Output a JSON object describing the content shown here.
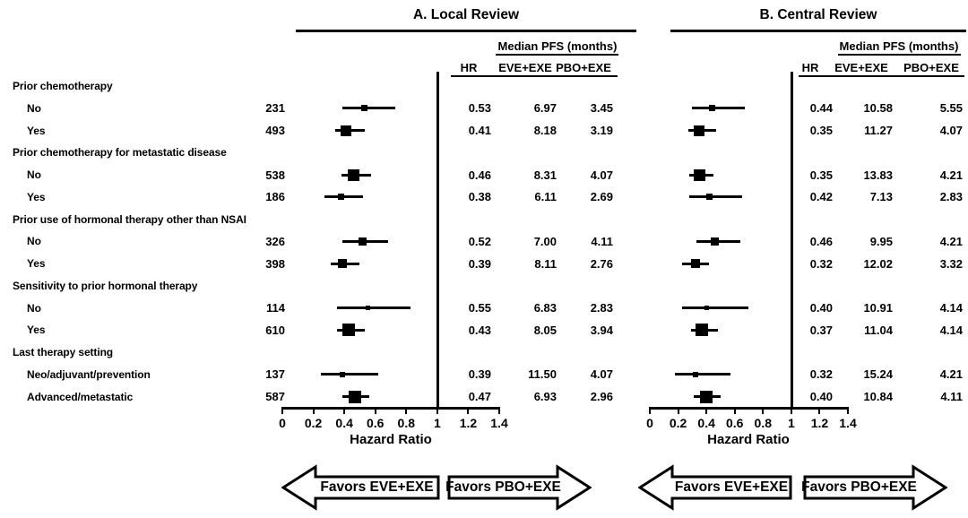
{
  "figure": {
    "background": "#ffffff",
    "ink": "#000000"
  },
  "panels": {
    "a_title": "A. Local Review",
    "b_title": "B. Central Review"
  },
  "table_headers": {
    "median_pfs": "Median PFS (months)",
    "hr": "HR",
    "eve": "EVE+EXE",
    "pbo": "PBO+EXE"
  },
  "axis": {
    "label": "Hazard Ratio"
  },
  "arrows": {
    "left": "Favors EVE+EXE",
    "right": "Favors PBO+EXE"
  },
  "chart_data": {
    "type": "forest",
    "x_axis": {
      "label": "Hazard Ratio",
      "range": [
        0,
        1.4
      ],
      "ticks": [
        0,
        0.2,
        0.4,
        0.6,
        0.8,
        1,
        1.2,
        1.4
      ],
      "reference_line": 1
    },
    "panels": [
      {
        "key": "local",
        "title": "A. Local Review"
      },
      {
        "key": "central",
        "title": "B. Central Review"
      }
    ],
    "value_columns": [
      "HR",
      "EVE+EXE (median PFS, months)",
      "PBO+EXE (median PFS, months)"
    ],
    "layout_hints": {
      "grid": false,
      "marker": "black square sized by n",
      "ci_note": "ci bounds estimated from plotted whiskers",
      "favors_left": "Favors EVE+EXE",
      "favors_right": "Favors PBO+EXE"
    },
    "rows": [
      {
        "type": "group",
        "label": "Prior chemotherapy"
      },
      {
        "type": "item",
        "label": "No",
        "n": 231,
        "local": {
          "hr": 0.53,
          "ci": [
            0.39,
            0.73
          ],
          "eve_pfs": 6.97,
          "pbo_pfs": 3.45
        },
        "central": {
          "hr": 0.44,
          "ci": [
            0.3,
            0.67
          ],
          "eve_pfs": 10.58,
          "pbo_pfs": 5.55
        }
      },
      {
        "type": "item",
        "label": "Yes",
        "n": 493,
        "local": {
          "hr": 0.41,
          "ci": [
            0.34,
            0.53
          ],
          "eve_pfs": 8.18,
          "pbo_pfs": 3.19
        },
        "central": {
          "hr": 0.35,
          "ci": [
            0.27,
            0.47
          ],
          "eve_pfs": 11.27,
          "pbo_pfs": 4.07
        }
      },
      {
        "type": "group",
        "label": "Prior chemotherapy for metastatic disease"
      },
      {
        "type": "item",
        "label": "No",
        "n": 538,
        "local": {
          "hr": 0.46,
          "ci": [
            0.38,
            0.57
          ],
          "eve_pfs": 8.31,
          "pbo_pfs": 4.07
        },
        "central": {
          "hr": 0.35,
          "ci": [
            0.28,
            0.45
          ],
          "eve_pfs": 13.83,
          "pbo_pfs": 4.21
        }
      },
      {
        "type": "item",
        "label": "Yes",
        "n": 186,
        "local": {
          "hr": 0.38,
          "ci": [
            0.27,
            0.52
          ],
          "eve_pfs": 6.11,
          "pbo_pfs": 2.69
        },
        "central": {
          "hr": 0.42,
          "ci": [
            0.28,
            0.65
          ],
          "eve_pfs": 7.13,
          "pbo_pfs": 2.83
        }
      },
      {
        "type": "group",
        "label": "Prior use of hormonal therapy other than NSAI"
      },
      {
        "type": "item",
        "label": "No",
        "n": 326,
        "local": {
          "hr": 0.52,
          "ci": [
            0.39,
            0.68
          ],
          "eve_pfs": 7.0,
          "pbo_pfs": 4.11
        },
        "central": {
          "hr": 0.46,
          "ci": [
            0.33,
            0.64
          ],
          "eve_pfs": 9.95,
          "pbo_pfs": 4.21
        }
      },
      {
        "type": "item",
        "label": "Yes",
        "n": 398,
        "local": {
          "hr": 0.39,
          "ci": [
            0.31,
            0.5
          ],
          "eve_pfs": 8.11,
          "pbo_pfs": 2.76
        },
        "central": {
          "hr": 0.32,
          "ci": [
            0.23,
            0.42
          ],
          "eve_pfs": 12.02,
          "pbo_pfs": 3.32
        }
      },
      {
        "type": "group",
        "label": "Sensitivity to prior hormonal therapy"
      },
      {
        "type": "item",
        "label": "No",
        "n": 114,
        "local": {
          "hr": 0.55,
          "ci": [
            0.35,
            0.83
          ],
          "eve_pfs": 6.83,
          "pbo_pfs": 2.83
        },
        "central": {
          "hr": 0.4,
          "ci": [
            0.23,
            0.7
          ],
          "eve_pfs": 10.91,
          "pbo_pfs": 4.14
        }
      },
      {
        "type": "item",
        "label": "Yes",
        "n": 610,
        "local": {
          "hr": 0.43,
          "ci": [
            0.35,
            0.53
          ],
          "eve_pfs": 8.05,
          "pbo_pfs": 3.94
        },
        "central": {
          "hr": 0.37,
          "ci": [
            0.29,
            0.48
          ],
          "eve_pfs": 11.04,
          "pbo_pfs": 4.14
        }
      },
      {
        "type": "group",
        "label": "Last therapy setting"
      },
      {
        "type": "item",
        "label": "Neo/adjuvant/prevention",
        "n": 137,
        "local": {
          "hr": 0.39,
          "ci": [
            0.25,
            0.62
          ],
          "eve_pfs": 11.5,
          "pbo_pfs": 4.07
        },
        "central": {
          "hr": 0.32,
          "ci": [
            0.18,
            0.57
          ],
          "eve_pfs": 15.24,
          "pbo_pfs": 4.21
        }
      },
      {
        "type": "item",
        "label": "Advanced/metastatic",
        "n": 587,
        "local": {
          "hr": 0.47,
          "ci": [
            0.39,
            0.56
          ],
          "eve_pfs": 6.93,
          "pbo_pfs": 2.96
        },
        "central": {
          "hr": 0.4,
          "ci": [
            0.31,
            0.5
          ],
          "eve_pfs": 10.84,
          "pbo_pfs": 4.11
        }
      }
    ]
  }
}
